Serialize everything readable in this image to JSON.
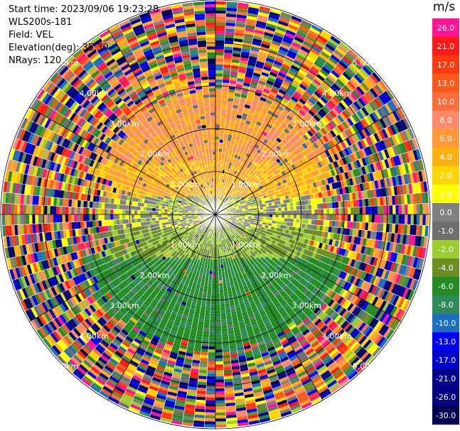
{
  "info": {
    "start_time": "Start time: 2023/09/06 19:23:28",
    "instrument": "WLS200s-181",
    "field": "Field: VEL",
    "elevation": "Elevation(deg): 35.30",
    "nrays": "NRays: 120"
  },
  "colorbar": {
    "unit": "m/s",
    "ticks": [
      "26.0",
      "21.0",
      "17.0",
      "13.0",
      "10.0",
      "8.0",
      "6.0",
      "4.0",
      "2.0",
      "1.0",
      "0.0",
      "-1.0",
      "-2.0",
      "-4.0",
      "-6.0",
      "-8.0",
      "-10.0",
      "-13.0",
      "-17.0",
      "-21.0",
      "-26.0",
      "-30.0"
    ],
    "colors": [
      "#ff1493",
      "#ff1a1a",
      "#ff3a10",
      "#ff5a1a",
      "#ff6e3a",
      "#ff8a6a",
      "#ff9a3a",
      "#ffb010",
      "#ffd400",
      "#ffff00",
      "#808080",
      "#6e6e6e",
      "#9acd32",
      "#6b8e23",
      "#228b22",
      "#2e8b57",
      "#1e6ebe",
      "#0000ff",
      "#0000cd",
      "#00008b",
      "#000080",
      "#000050"
    ]
  },
  "chart_data": {
    "type": "ppi",
    "field": "VEL",
    "units": "m/s",
    "range_ring_labels_km": [
      "1.00km",
      "2.00km",
      "3.00km",
      "4.00km",
      "5.00km"
    ],
    "range_rings_km": [
      1,
      2,
      3,
      4,
      5
    ],
    "max_range_km": 5.0,
    "nrays": 120,
    "regions": [
      {
        "sector": "north",
        "range_km": [
          0,
          3
        ],
        "value_m_s": 5
      },
      {
        "sector": "north-near",
        "range_km": [
          0,
          1.5
        ],
        "value_m_s": 2
      },
      {
        "sector": "east-west",
        "range_km": [
          0,
          2.5
        ],
        "value_m_s": 0.5
      },
      {
        "sector": "south",
        "range_km": [
          0,
          3.2
        ],
        "value_m_s": -6
      },
      {
        "sector": "south-west",
        "range_km": [
          0.5,
          3
        ],
        "value_m_s": -3
      },
      {
        "sector": "all",
        "range_km": [
          3.5,
          5
        ],
        "value_m_s": "noise"
      }
    ]
  }
}
